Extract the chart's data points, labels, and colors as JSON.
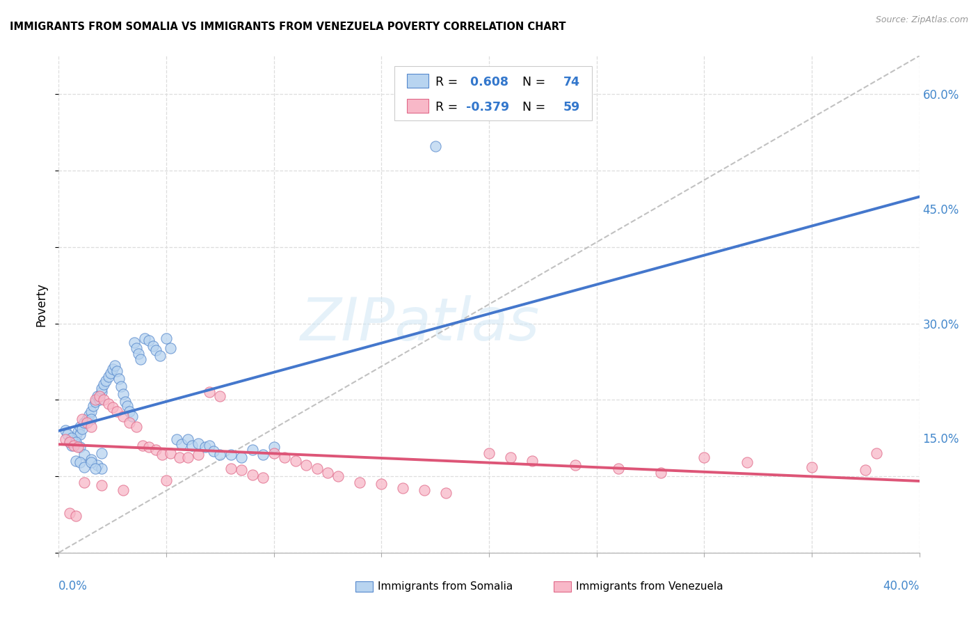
{
  "title": "IMMIGRANTS FROM SOMALIA VS IMMIGRANTS FROM VENEZUELA POVERTY CORRELATION CHART",
  "source": "Source: ZipAtlas.com",
  "ylabel": "Poverty",
  "xlim": [
    0.0,
    0.4
  ],
  "ylim": [
    0.0,
    0.65
  ],
  "somalia_fill": "#b8d4f0",
  "somalia_edge": "#5588cc",
  "venezuela_fill": "#f8b8c8",
  "venezuela_edge": "#e06888",
  "somalia_line": "#4477cc",
  "venezuela_line": "#dd5577",
  "diagonal_color": "#bbbbbb",
  "R_somalia": 0.608,
  "N_somalia": 74,
  "R_venezuela": -0.379,
  "N_venezuela": 59,
  "label_somalia": "Immigrants from Somalia",
  "label_venezuela": "Immigrants from Venezuela",
  "watermark": "ZIPatlas",
  "right_yticks": [
    0.15,
    0.3,
    0.45,
    0.6
  ],
  "right_yticklabels": [
    "15.0%",
    "30.0%",
    "45.0%",
    "60.0%"
  ],
  "somalia_x": [
    0.005,
    0.006,
    0.007,
    0.008,
    0.009,
    0.01,
    0.01,
    0.011,
    0.012,
    0.013,
    0.014,
    0.015,
    0.015,
    0.016,
    0.017,
    0.018,
    0.019,
    0.02,
    0.02,
    0.021,
    0.022,
    0.023,
    0.024,
    0.025,
    0.026,
    0.027,
    0.028,
    0.029,
    0.03,
    0.031,
    0.032,
    0.033,
    0.034,
    0.035,
    0.036,
    0.037,
    0.038,
    0.04,
    0.042,
    0.044,
    0.045,
    0.047,
    0.05,
    0.052,
    0.055,
    0.057,
    0.06,
    0.062,
    0.065,
    0.068,
    0.07,
    0.072,
    0.075,
    0.08,
    0.085,
    0.09,
    0.095,
    0.1,
    0.003,
    0.004,
    0.006,
    0.008,
    0.01,
    0.012,
    0.015,
    0.018,
    0.02,
    0.008,
    0.01,
    0.012,
    0.015,
    0.017,
    0.02,
    0.175
  ],
  "somalia_y": [
    0.145,
    0.14,
    0.148,
    0.152,
    0.158,
    0.165,
    0.155,
    0.162,
    0.17,
    0.175,
    0.18,
    0.185,
    0.175,
    0.192,
    0.198,
    0.205,
    0.2,
    0.21,
    0.215,
    0.22,
    0.225,
    0.23,
    0.235,
    0.24,
    0.245,
    0.238,
    0.228,
    0.218,
    0.208,
    0.198,
    0.192,
    0.185,
    0.178,
    0.275,
    0.268,
    0.26,
    0.253,
    0.28,
    0.278,
    0.27,
    0.265,
    0.258,
    0.28,
    0.268,
    0.148,
    0.142,
    0.148,
    0.14,
    0.143,
    0.138,
    0.14,
    0.133,
    0.128,
    0.128,
    0.125,
    0.135,
    0.128,
    0.138,
    0.16,
    0.155,
    0.15,
    0.145,
    0.138,
    0.128,
    0.122,
    0.115,
    0.11,
    0.12,
    0.118,
    0.112,
    0.118,
    0.11,
    0.13,
    0.532
  ],
  "venezuela_x": [
    0.003,
    0.005,
    0.007,
    0.009,
    0.011,
    0.013,
    0.015,
    0.017,
    0.019,
    0.021,
    0.023,
    0.025,
    0.027,
    0.03,
    0.033,
    0.036,
    0.039,
    0.042,
    0.045,
    0.048,
    0.052,
    0.056,
    0.06,
    0.065,
    0.07,
    0.075,
    0.08,
    0.085,
    0.09,
    0.095,
    0.1,
    0.105,
    0.11,
    0.115,
    0.12,
    0.125,
    0.13,
    0.14,
    0.15,
    0.16,
    0.17,
    0.18,
    0.2,
    0.21,
    0.22,
    0.24,
    0.26,
    0.28,
    0.3,
    0.32,
    0.35,
    0.375,
    0.38,
    0.005,
    0.008,
    0.012,
    0.02,
    0.03,
    0.05
  ],
  "venezuela_y": [
    0.148,
    0.145,
    0.14,
    0.138,
    0.175,
    0.17,
    0.165,
    0.2,
    0.205,
    0.2,
    0.195,
    0.19,
    0.185,
    0.178,
    0.17,
    0.165,
    0.14,
    0.138,
    0.135,
    0.128,
    0.13,
    0.125,
    0.125,
    0.128,
    0.21,
    0.205,
    0.11,
    0.108,
    0.102,
    0.098,
    0.13,
    0.125,
    0.12,
    0.115,
    0.11,
    0.105,
    0.1,
    0.092,
    0.09,
    0.085,
    0.082,
    0.078,
    0.13,
    0.125,
    0.12,
    0.115,
    0.11,
    0.105,
    0.125,
    0.118,
    0.112,
    0.108,
    0.13,
    0.052,
    0.048,
    0.092,
    0.088,
    0.082,
    0.095
  ]
}
